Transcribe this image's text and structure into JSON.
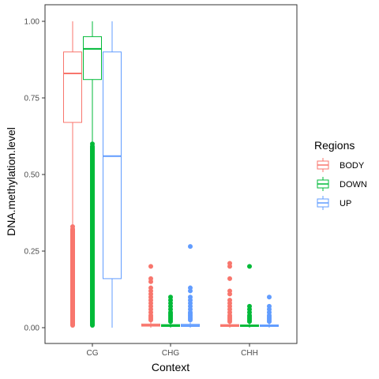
{
  "chart_data": {
    "type": "boxplot",
    "xlabel": "Context",
    "ylabel": "DNA.methylation.level",
    "ylim": [
      0,
      1
    ],
    "yticks": [
      "0.00",
      "0.25",
      "0.50",
      "0.75",
      "1.00"
    ],
    "categories": [
      "CG",
      "CHG",
      "CHH"
    ],
    "grid": false,
    "legend": {
      "title": "Regions",
      "placement": "right",
      "entries": [
        "BODY",
        "DOWN",
        "UP"
      ]
    },
    "series": [
      {
        "name": "BODY",
        "color": "#F8766D",
        "boxes": [
          {
            "category": "CG",
            "min": 0.0,
            "q1": 0.67,
            "median": 0.83,
            "q3": 0.9,
            "max": 1.0,
            "outliers": [],
            "outlier_band": [
              0.0,
              0.33
            ]
          },
          {
            "category": "CHG",
            "min": 0.0,
            "q1": 0.005,
            "median": 0.008,
            "q3": 0.012,
            "max": 0.02,
            "outliers": [
              0.2,
              0.16,
              0.15,
              0.13,
              0.12,
              0.11,
              0.1,
              0.09,
              0.08,
              0.07,
              0.06,
              0.05,
              0.04,
              0.035,
              0.03,
              0.025
            ],
            "outlier_band": null
          },
          {
            "category": "CHH",
            "min": 0.0,
            "q1": 0.004,
            "median": 0.007,
            "q3": 0.01,
            "max": 0.015,
            "outliers": [
              0.21,
              0.2,
              0.16,
              0.12,
              0.11,
              0.09,
              0.08,
              0.07,
              0.06,
              0.05,
              0.04,
              0.035,
              0.03,
              0.025,
              0.02
            ],
            "outlier_band": null
          }
        ]
      },
      {
        "name": "DOWN",
        "color": "#00BA38",
        "boxes": [
          {
            "category": "CG",
            "min": 0.0,
            "q1": 0.81,
            "median": 0.91,
            "q3": 0.95,
            "max": 1.0,
            "outliers": [],
            "outlier_band": [
              0.0,
              0.6
            ]
          },
          {
            "category": "CHG",
            "min": 0.0,
            "q1": 0.004,
            "median": 0.007,
            "q3": 0.01,
            "max": 0.015,
            "outliers": [
              0.1,
              0.09,
              0.08,
              0.07,
              0.06,
              0.05,
              0.045,
              0.04,
              0.035,
              0.03,
              0.025,
              0.02
            ],
            "outlier_band": null
          },
          {
            "category": "CHH",
            "min": 0.0,
            "q1": 0.004,
            "median": 0.006,
            "q3": 0.009,
            "max": 0.013,
            "outliers": [
              0.2,
              0.07,
              0.06,
              0.05,
              0.04,
              0.035,
              0.03,
              0.025,
              0.02
            ],
            "outlier_band": null
          }
        ]
      },
      {
        "name": "UP",
        "color": "#619CFF",
        "boxes": [
          {
            "category": "CG",
            "min": 0.0,
            "q1": 0.16,
            "median": 0.56,
            "q3": 0.9,
            "max": 1.0,
            "outliers": [],
            "outlier_band": null
          },
          {
            "category": "CHG",
            "min": 0.0,
            "q1": 0.004,
            "median": 0.007,
            "q3": 0.011,
            "max": 0.017,
            "outliers": [
              0.265,
              0.13,
              0.12,
              0.1,
              0.09,
              0.08,
              0.07,
              0.06,
              0.05,
              0.045,
              0.04,
              0.035,
              0.03,
              0.025
            ],
            "outlier_band": null
          },
          {
            "category": "CHH",
            "min": 0.0,
            "q1": 0.004,
            "median": 0.006,
            "q3": 0.009,
            "max": 0.013,
            "outliers": [
              0.1,
              0.07,
              0.06,
              0.05,
              0.04,
              0.035,
              0.03,
              0.025,
              0.02
            ],
            "outlier_band": null
          }
        ]
      }
    ]
  }
}
